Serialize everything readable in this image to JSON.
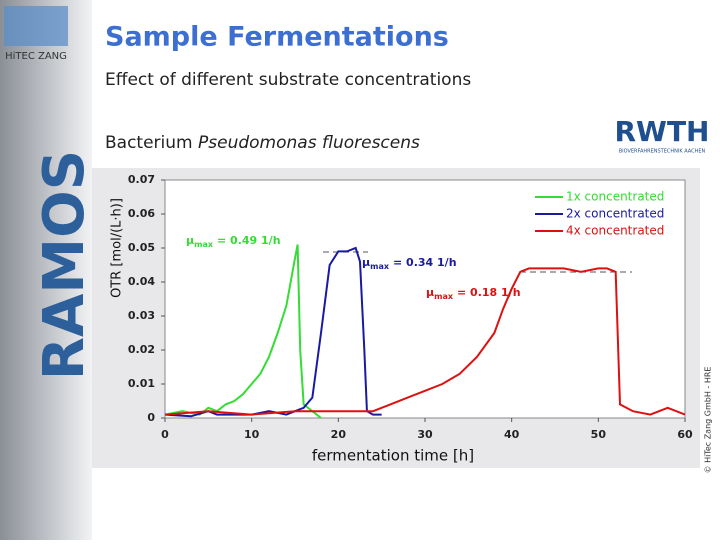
{
  "logo": {
    "company": "HiTEC ZANG",
    "product": "RAMOS"
  },
  "title": "Sample Fermentations",
  "subtitle": "Effect of different substrate concentrations",
  "organism": {
    "prefix": "Bacterium",
    "name": "Pseudomonas fluorescens"
  },
  "partner_logo": {
    "name": "RWTH",
    "caption": "BIOVERFAHRENSTECHNIK AACHEN"
  },
  "copyright": "© HiTec Zang GmbH - HRE",
  "chart_data": {
    "type": "line",
    "x_label": "fermentation time [h]",
    "y_label": "OTR [mol/(L·h)]",
    "xlim": [
      0,
      60
    ],
    "xticks": [
      0,
      10,
      20,
      30,
      40,
      50,
      60
    ],
    "ylim": [
      0,
      0.07
    ],
    "yticks": [
      0,
      0.01,
      0.02,
      0.03,
      0.04,
      0.05,
      0.06,
      0.07
    ],
    "legend": "top-right",
    "series": [
      {
        "name": "1x concentrated",
        "color": "#33dd33",
        "x": [
          0,
          2,
          4,
          5,
          6,
          7,
          8,
          9,
          10,
          11,
          12,
          13,
          14,
          14.5,
          15,
          15.3,
          15.6,
          16,
          17,
          18
        ],
        "values": [
          0.001,
          0.002,
          0.001,
          0.003,
          0.002,
          0.004,
          0.005,
          0.007,
          0.01,
          0.013,
          0.018,
          0.025,
          0.033,
          0.04,
          0.047,
          0.051,
          0.02,
          0.004,
          0.002,
          0
        ]
      },
      {
        "name": "2x concentrated",
        "color": "#1a1aa0",
        "x": [
          0,
          3,
          5,
          6,
          8,
          10,
          12,
          14,
          15,
          16,
          17,
          18,
          19,
          20,
          21,
          22,
          22.5,
          23,
          23.3,
          24,
          25
        ],
        "values": [
          0.001,
          0.0005,
          0.002,
          0.001,
          0.001,
          0.001,
          0.002,
          0.001,
          0.002,
          0.003,
          0.006,
          0.025,
          0.045,
          0.049,
          0.049,
          0.05,
          0.046,
          0.02,
          0.002,
          0.001,
          0.001
        ]
      },
      {
        "name": "4x concentrated",
        "color": "#dd1111",
        "x": [
          0,
          5,
          10,
          15,
          20,
          24,
          26,
          28,
          30,
          32,
          34,
          36,
          38,
          39,
          40,
          41,
          42,
          44,
          46,
          48,
          50,
          51,
          52,
          52.5,
          54,
          56,
          58,
          59,
          60
        ],
        "values": [
          0.001,
          0.002,
          0.001,
          0.002,
          0.002,
          0.002,
          0.004,
          0.006,
          0.008,
          0.01,
          0.013,
          0.018,
          0.025,
          0.032,
          0.038,
          0.043,
          0.044,
          0.044,
          0.044,
          0.043,
          0.044,
          0.044,
          0.043,
          0.004,
          0.002,
          0.001,
          0.003,
          0.002,
          0.001
        ]
      }
    ],
    "annotations": [
      {
        "symbol": "μ",
        "sub": "max",
        "text": "= 0.49 1/h",
        "color": "#33dd33"
      },
      {
        "symbol": "μ",
        "sub": "max",
        "text": "= 0.34 1/h",
        "color": "#1a1aa0"
      },
      {
        "symbol": "μ",
        "sub": "max",
        "text": "= 0.18 1/h",
        "color": "#dd1111"
      }
    ]
  }
}
